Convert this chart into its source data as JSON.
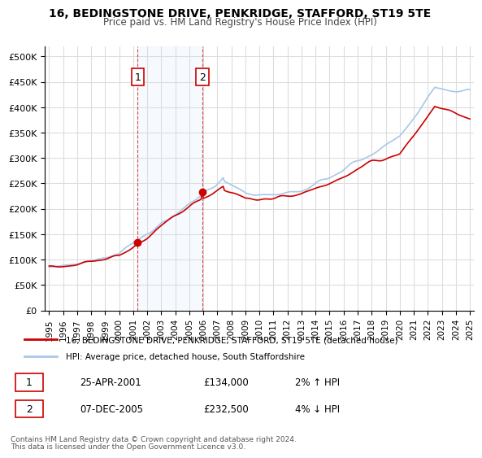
{
  "title": "16, BEDINGSTONE DRIVE, PENKRIDGE, STAFFORD, ST19 5TE",
  "subtitle": "Price paid vs. HM Land Registry's House Price Index (HPI)",
  "legend_line1": "16, BEDINGSTONE DRIVE, PENKRIDGE, STAFFORD, ST19 5TE (detached house)",
  "legend_line2": "HPI: Average price, detached house, South Staffordshire",
  "footer1": "Contains HM Land Registry data © Crown copyright and database right 2024.",
  "footer2": "This data is licensed under the Open Government Licence v3.0.",
  "sale1_label": "1",
  "sale1_date": "25-APR-2001",
  "sale1_price": "£134,000",
  "sale1_hpi": "2% ↑ HPI",
  "sale2_label": "2",
  "sale2_date": "07-DEC-2005",
  "sale2_price": "£232,500",
  "sale2_hpi": "4% ↓ HPI",
  "hpi_color": "#a8c8e8",
  "price_color": "#cc0000",
  "sale_dot_color": "#cc0000",
  "shade_color": "#ddeeff",
  "grid_color": "#dddddd",
  "bg_color": "#ffffff",
  "ylim": [
    0,
    500000
  ],
  "yticks": [
    0,
    50000,
    100000,
    150000,
    200000,
    250000,
    300000,
    350000,
    400000,
    450000,
    500000
  ],
  "sale1_x": 2001.31,
  "sale1_y": 134000,
  "sale2_x": 2005.93,
  "sale2_y": 232500,
  "shade_x1": 2001.31,
  "shade_x2": 2005.93,
  "xmin": 1995,
  "xmax": 2025
}
